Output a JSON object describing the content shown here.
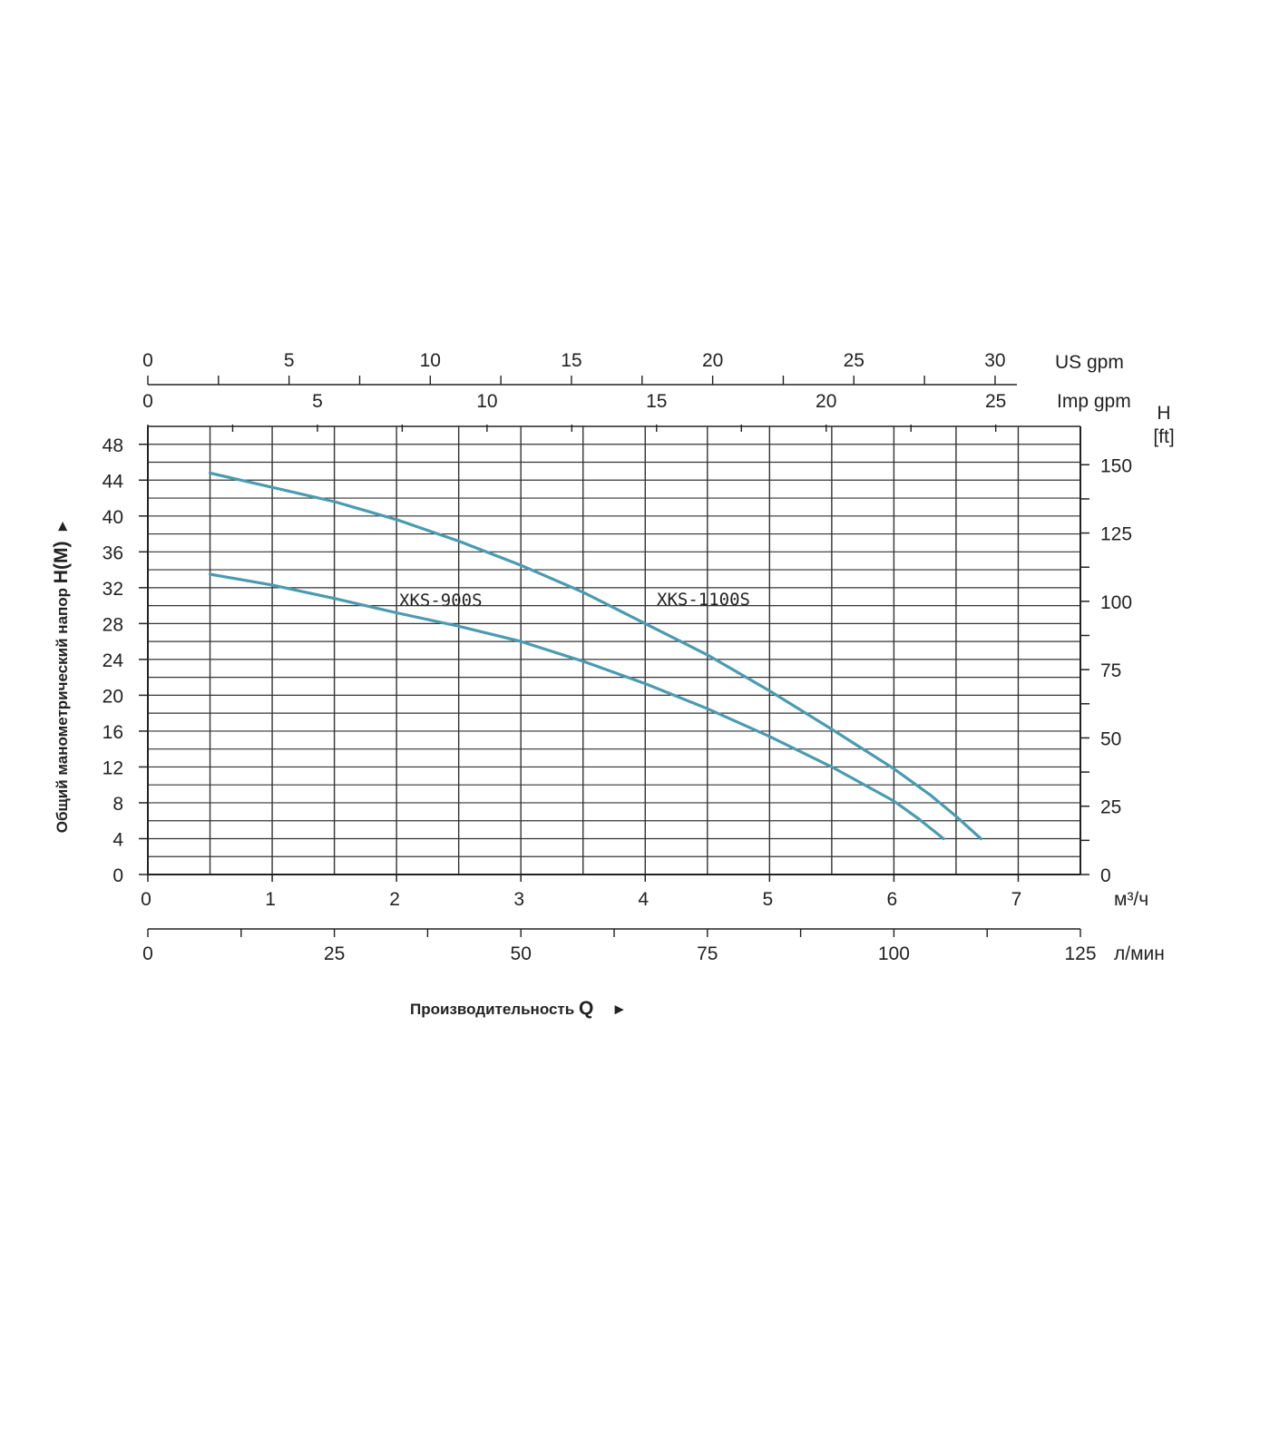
{
  "chart_data": {
    "type": "line",
    "xlabel": "Производительность",
    "xlabel_symbol": "Q",
    "xlabel_arrow": "►",
    "ylabel": "Общий манометрический напор",
    "ylabel_symbol": "H(M)",
    "ylabel_arrow": "►",
    "x_unit": "м³/ч",
    "xlim": [
      0,
      7.5
    ],
    "ylim": [
      0,
      50
    ],
    "x_ticks": [
      0,
      1,
      2,
      3,
      4,
      5,
      6,
      7
    ],
    "y_ticks": [
      0,
      4,
      8,
      12,
      16,
      20,
      24,
      28,
      32,
      36,
      40,
      44,
      48
    ],
    "grid": true,
    "secondary_axes": {
      "us_gpm": {
        "unit": "US gpm",
        "ticks": [
          0,
          5,
          10,
          15,
          20,
          25,
          30
        ]
      },
      "imp_gpm": {
        "unit": "Imp gpm",
        "ticks": [
          0,
          5,
          10,
          15,
          20,
          25
        ]
      },
      "l_min": {
        "unit": "л/мин",
        "ticks": [
          0,
          25,
          50,
          75,
          100,
          125
        ]
      },
      "ft": {
        "unit_line1": "H",
        "unit_line2": "[ft]",
        "ticks": [
          0,
          25,
          50,
          75,
          100,
          125,
          150
        ]
      }
    },
    "series": [
      {
        "name": "XKS-900S",
        "color": "#4a9bb0",
        "x": [
          0.5,
          1.0,
          1.5,
          2.0,
          2.5,
          3.0,
          3.5,
          4.0,
          4.5,
          5.0,
          5.5,
          6.0,
          6.2,
          6.4
        ],
        "y": [
          33.5,
          32.3,
          30.8,
          29.2,
          27.7,
          26.0,
          23.8,
          21.3,
          18.5,
          15.4,
          12.0,
          8.2,
          6.2,
          4.0
        ]
      },
      {
        "name": "XKS-1100S",
        "color": "#4a9bb0",
        "x": [
          0.5,
          1.0,
          1.5,
          2.0,
          2.5,
          3.0,
          3.5,
          4.0,
          4.5,
          5.0,
          5.5,
          6.0,
          6.3,
          6.5,
          6.7
        ],
        "y": [
          44.8,
          43.2,
          41.6,
          39.6,
          37.2,
          34.5,
          31.5,
          28.0,
          24.5,
          20.5,
          16.2,
          11.8,
          8.8,
          6.5,
          4.0
        ]
      }
    ]
  }
}
